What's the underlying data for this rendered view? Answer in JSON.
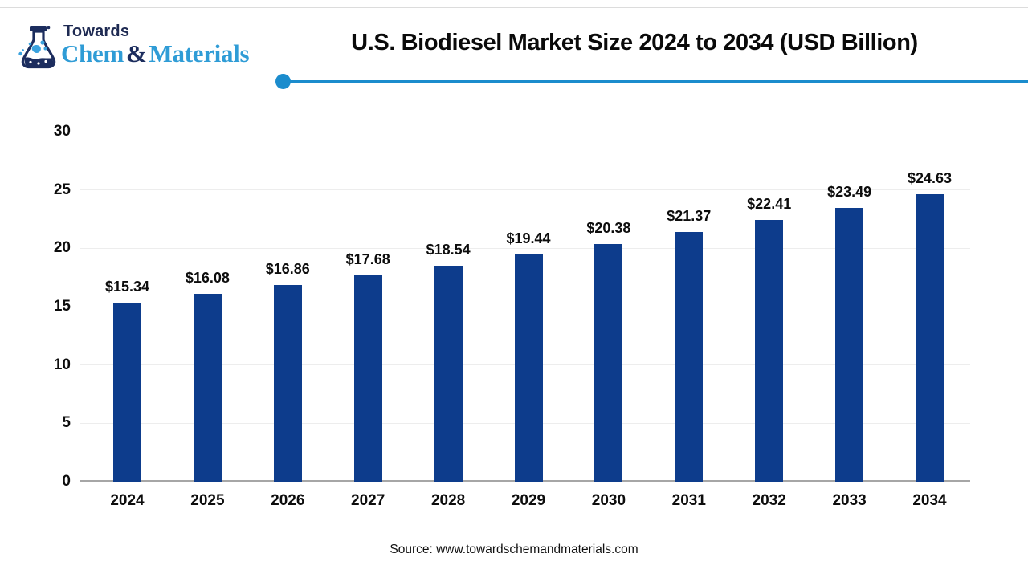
{
  "logo": {
    "towards": "Towards",
    "chem": "Chem",
    "ampersand": "&",
    "materials": "Materials"
  },
  "header": {
    "title": "U.S. Biodiesel Market Size 2024 to 2034 (USD Billion)"
  },
  "footer": {
    "source": "Source: www.towardschemandmaterials.com"
  },
  "colors": {
    "bar": "#0d3c8c",
    "accent_blue": "#1b8ccd",
    "logo_navy": "#1c2d5e",
    "logo_light_blue": "#2f9cd6",
    "gridline": "#ededed",
    "axis_line": "#a6a6a6"
  },
  "chart_data": {
    "type": "bar",
    "title": "U.S. Biodiesel Market Size 2024 to 2034 (USD Billion)",
    "categories": [
      "2024",
      "2025",
      "2026",
      "2027",
      "2028",
      "2029",
      "2030",
      "2031",
      "2032",
      "2033",
      "2034"
    ],
    "values": [
      15.34,
      16.08,
      16.86,
      17.68,
      18.54,
      19.44,
      20.38,
      21.37,
      22.41,
      23.49,
      24.63
    ],
    "data_labels": [
      "$15.34",
      "$16.08",
      "$16.86",
      "$17.68",
      "$18.54",
      "$19.44",
      "$20.38",
      "$21.37",
      "$22.41",
      "$23.49",
      "$24.63"
    ],
    "currency": "USD Billion",
    "xlabel": "",
    "ylabel": "",
    "ylim": [
      0,
      30
    ],
    "yticks": [
      0,
      5,
      10,
      15,
      20,
      25,
      30
    ],
    "grid": true,
    "legend": false
  }
}
